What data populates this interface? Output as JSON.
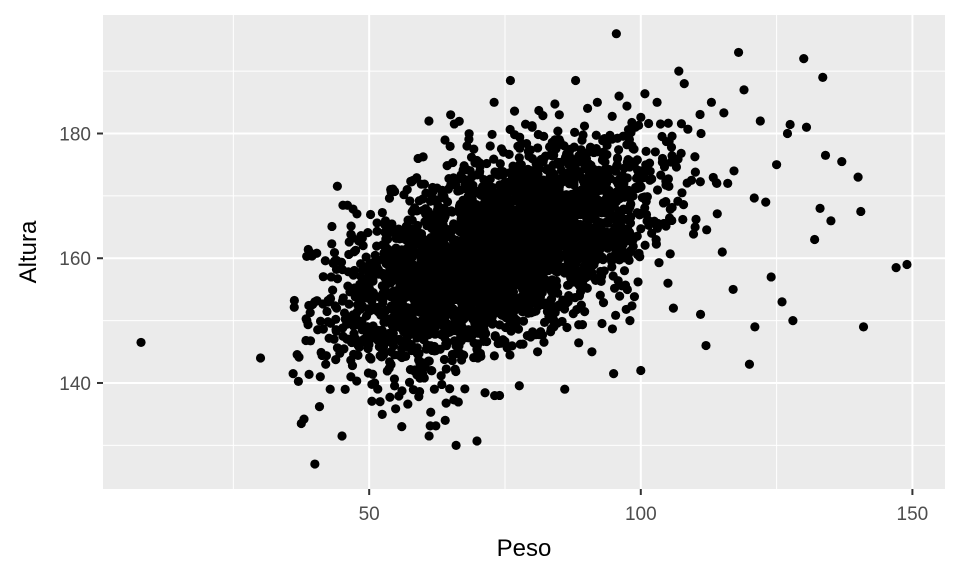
{
  "chart_data": {
    "type": "scatter",
    "title": "",
    "xlabel": "Peso",
    "ylabel": "Altura",
    "xlim": [
      1,
      156
    ],
    "ylim": [
      123,
      199
    ],
    "x_ticks": [
      50,
      100,
      150
    ],
    "x_tick_labels": [
      "50",
      "100",
      "150"
    ],
    "y_ticks": [
      140,
      160,
      180
    ],
    "y_tick_labels": [
      "140",
      "160",
      "180"
    ],
    "grid": true,
    "legend": "none",
    "colors": {
      "panel": "#EBEBEB",
      "grid": "#FFFFFF",
      "point": "#000000"
    },
    "series": [
      {
        "points": [
          [
            8,
            146.5
          ],
          [
            30,
            144
          ],
          [
            36,
            141.5
          ],
          [
            37.5,
            133.5
          ],
          [
            38,
            134.2
          ],
          [
            38.5,
            160.3
          ],
          [
            39,
            161
          ],
          [
            40,
            127
          ],
          [
            40,
            153
          ],
          [
            41,
            141
          ],
          [
            42,
            143
          ],
          [
            43,
            157
          ],
          [
            44,
            152
          ],
          [
            45,
            131.5
          ],
          [
            46,
            168.5
          ],
          [
            47,
            150
          ],
          [
            48,
            163
          ],
          [
            49,
            147
          ],
          [
            50,
            159
          ],
          [
            51,
            140
          ],
          [
            52,
            137
          ],
          [
            53,
            166
          ],
          [
            54,
            145
          ],
          [
            55,
            158
          ],
          [
            56,
            133
          ],
          [
            57,
            171
          ],
          [
            58,
            152
          ],
          [
            59,
            176
          ],
          [
            60,
            147
          ],
          [
            61,
            182
          ],
          [
            62,
            139
          ],
          [
            63,
            165
          ],
          [
            64,
            134
          ],
          [
            65,
            183
          ],
          [
            66,
            130
          ],
          [
            67,
            150
          ],
          [
            68,
            178
          ],
          [
            69,
            156
          ],
          [
            70,
            144
          ],
          [
            71,
            170
          ],
          [
            72,
            160
          ],
          [
            73,
            185
          ],
          [
            74,
            138
          ],
          [
            75,
            167
          ],
          [
            76,
            188.5
          ],
          [
            77,
            152
          ],
          [
            78,
            175
          ],
          [
            79,
            162
          ],
          [
            80,
            181
          ],
          [
            81,
            145
          ],
          [
            82,
            158
          ],
          [
            83,
            172
          ],
          [
            84,
            149
          ],
          [
            85,
            183
          ],
          [
            86,
            139
          ],
          [
            87,
            166
          ],
          [
            88,
            188.5
          ],
          [
            89,
            155
          ],
          [
            90,
            176
          ],
          [
            91,
            145
          ],
          [
            92,
            185
          ],
          [
            93,
            162
          ],
          [
            94,
            170
          ],
          [
            95,
            141.5
          ],
          [
            95.5,
            196
          ],
          [
            96,
            186
          ],
          [
            97,
            158
          ],
          [
            98,
            150
          ],
          [
            99,
            181
          ],
          [
            100,
            142
          ],
          [
            101,
            174
          ],
          [
            102,
            164
          ],
          [
            103,
            185
          ],
          [
            104,
            176
          ],
          [
            105,
            156
          ],
          [
            106,
            152
          ],
          [
            107,
            190
          ],
          [
            108,
            188
          ],
          [
            110,
            165
          ],
          [
            111,
            151
          ],
          [
            112,
            146
          ],
          [
            113,
            185
          ],
          [
            114,
            172
          ],
          [
            115,
            161
          ],
          [
            116,
            172
          ],
          [
            117,
            155
          ],
          [
            118,
            193
          ],
          [
            119,
            187
          ],
          [
            120,
            143
          ],
          [
            121,
            149
          ],
          [
            122,
            182
          ],
          [
            123,
            169
          ],
          [
            124,
            157
          ],
          [
            125,
            175
          ],
          [
            126,
            153
          ],
          [
            127,
            180
          ],
          [
            128,
            150
          ],
          [
            130,
            192
          ],
          [
            130.5,
            181
          ],
          [
            132,
            163
          ],
          [
            133,
            168
          ],
          [
            133.5,
            189
          ],
          [
            134,
            176.5
          ],
          [
            135,
            166
          ],
          [
            137,
            175.5
          ],
          [
            140,
            173
          ],
          [
            140.5,
            167.5
          ],
          [
            141,
            149
          ],
          [
            147,
            158.5
          ],
          [
            149,
            159
          ]
        ]
      }
    ]
  }
}
